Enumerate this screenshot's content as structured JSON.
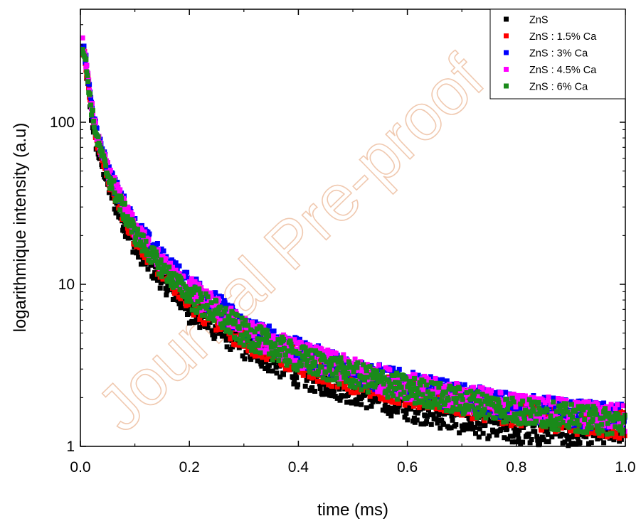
{
  "watermark": "Journal Pre-proof",
  "chart_data": {
    "type": "scatter",
    "title": "",
    "xlabel": "time (ms)",
    "ylabel": "logarithmique intensity (a.u)",
    "xlim": [
      0,
      1
    ],
    "ylim": [
      1,
      400
    ],
    "yscale": "log",
    "x_ticks": [
      "0.0",
      "0.2",
      "0.4",
      "0.6",
      "0.8",
      "1.0"
    ],
    "y_ticks": [
      "1",
      "10",
      "100"
    ],
    "grid": false,
    "legend_position": "top-right",
    "marker": "square",
    "sample_interval_ms": 0.00125,
    "series": [
      {
        "name": "ZnS",
        "color": "#000000",
        "x": [
          0.0,
          0.01,
          0.02,
          0.03,
          0.05,
          0.07,
          0.1,
          0.15,
          0.2,
          0.3,
          0.4,
          0.5,
          0.6,
          0.7,
          0.8,
          0.9,
          1.0
        ],
        "y": [
          340,
          220,
          110,
          70,
          42,
          28,
          17,
          10.5,
          7.0,
          4.2,
          2.8,
          2.2,
          1.75,
          1.45,
          1.25,
          1.15,
          1.1
        ]
      },
      {
        "name": "ZnS : 1.5% Ca",
        "color": "#ff0000",
        "x": [
          0.0,
          0.01,
          0.02,
          0.03,
          0.05,
          0.07,
          0.1,
          0.15,
          0.2,
          0.3,
          0.4,
          0.5,
          0.6,
          0.7,
          0.8,
          0.9,
          1.0
        ],
        "y": [
          350,
          230,
          120,
          78,
          47,
          32,
          19.5,
          12,
          8.0,
          4.7,
          3.3,
          2.6,
          2.15,
          1.85,
          1.6,
          1.45,
          1.35
        ]
      },
      {
        "name": "ZnS : 3% Ca",
        "color": "#0000ff",
        "x": [
          0.0,
          0.01,
          0.02,
          0.03,
          0.05,
          0.07,
          0.1,
          0.15,
          0.2,
          0.3,
          0.4,
          0.5,
          0.6,
          0.7,
          0.8,
          0.9,
          1.0
        ],
        "y": [
          355,
          240,
          130,
          85,
          52,
          36,
          23,
          14.5,
          10.0,
          5.4,
          3.8,
          2.9,
          2.4,
          2.0,
          1.75,
          1.6,
          1.5
        ]
      },
      {
        "name": "ZnS : 4.5% Ca",
        "color": "#ff00ff",
        "x": [
          0.0,
          0.01,
          0.02,
          0.03,
          0.05,
          0.07,
          0.1,
          0.15,
          0.2,
          0.3,
          0.4,
          0.5,
          0.6,
          0.7,
          0.8,
          0.9,
          1.0
        ],
        "y": [
          355,
          238,
          128,
          83,
          50,
          35,
          22,
          13.5,
          9.2,
          5.2,
          3.7,
          2.9,
          2.35,
          2.0,
          1.75,
          1.6,
          1.5
        ]
      },
      {
        "name": "ZnS : 6% Ca",
        "color": "#1a8a1a",
        "x": [
          0.0,
          0.01,
          0.02,
          0.03,
          0.05,
          0.07,
          0.1,
          0.15,
          0.2,
          0.3,
          0.4,
          0.5,
          0.6,
          0.7,
          0.8,
          0.9,
          1.0
        ],
        "y": [
          350,
          232,
          122,
          80,
          48,
          33,
          20.5,
          12.5,
          8.6,
          5.0,
          3.5,
          2.75,
          2.25,
          1.9,
          1.65,
          1.5,
          1.4
        ]
      }
    ]
  }
}
